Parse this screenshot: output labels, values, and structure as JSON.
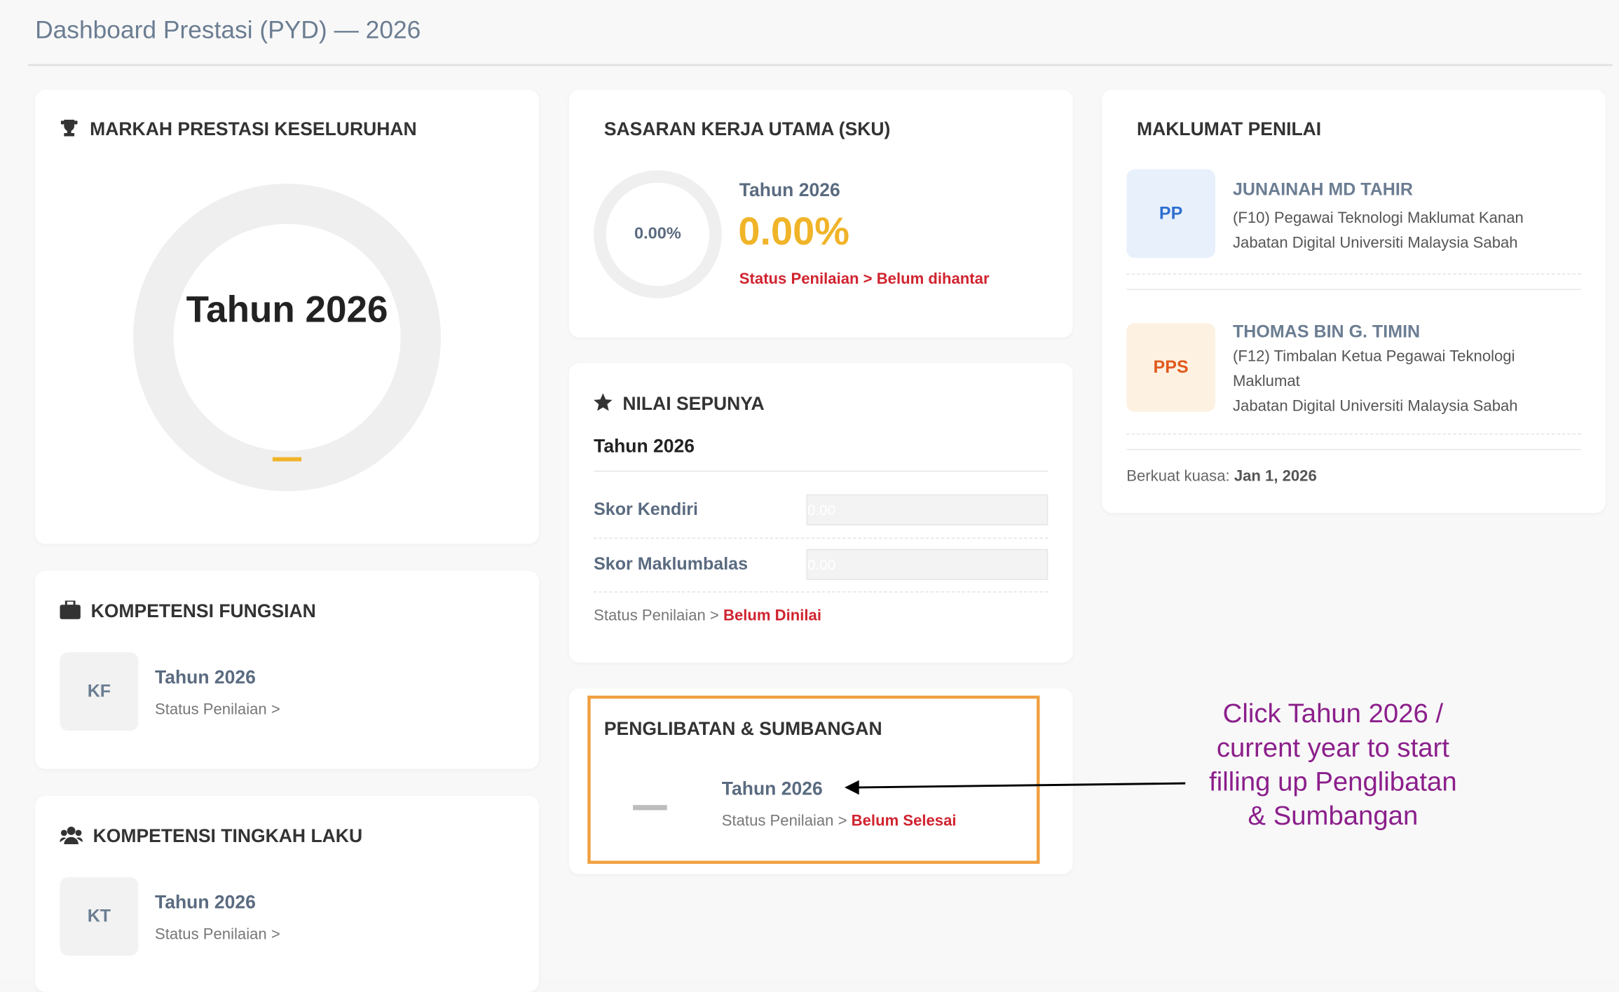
{
  "header": {
    "title": "Dashboard Prestasi (PYD) — 2026"
  },
  "markah": {
    "title": "MARKAH PRESTASI KESELURUHAN",
    "year": "Tahun 2026"
  },
  "sku": {
    "title": "SASARAN KERJA UTAMA (SKU)",
    "donut_label": "0.00%",
    "year": "Tahun 2026",
    "percent": "0.00%",
    "status": "Status Penilaian > Belum dihantar"
  },
  "nilai": {
    "title": "NILAI SEPUNYA",
    "year": "Tahun 2026",
    "fields": [
      {
        "label": "Skor Kendiri",
        "value": "0.00"
      },
      {
        "label": "Skor Maklumbalas",
        "value": "0.00"
      }
    ],
    "status_label": "Status Penilaian >",
    "status": "Belum Dinilai"
  },
  "penglibatan": {
    "title": "PENGLIBATAN & SUMBANGAN",
    "year": "Tahun 2026",
    "status_label": "Status Penilaian >",
    "status": "Belum Selesai"
  },
  "kf": {
    "title": "KOMPETENSI FUNGSIAN",
    "badge": "KF",
    "year": "Tahun 2026",
    "status": "Status Penilaian >"
  },
  "kt": {
    "title": "KOMPETENSI TINGKAH LAKU",
    "badge": "KT",
    "year": "Tahun 2026",
    "status": "Status Penilaian >"
  },
  "penilai": {
    "title": "MAKLUMAT PENILAI",
    "people": [
      {
        "badge": "PP",
        "name": "JUNAINAH MD TAHIR",
        "position": "(F10) Pegawai Teknologi Maklumat Kanan",
        "department": "Jabatan Digital Universiti Malaysia Sabah"
      },
      {
        "badge": "PPS",
        "name": "THOMAS BIN G. TIMIN",
        "position": "(F12) Timbalan Ketua Pegawai Teknologi Maklumat",
        "department": "Jabatan Digital Universiti Malaysia Sabah"
      }
    ],
    "effective_label": "Berkuat kuasa:",
    "effective_date": "Jan 1, 2026"
  },
  "annotation": {
    "text": "Click Tahun 2026 / current year to start filling up Penglibatan & Sumbangan"
  }
}
